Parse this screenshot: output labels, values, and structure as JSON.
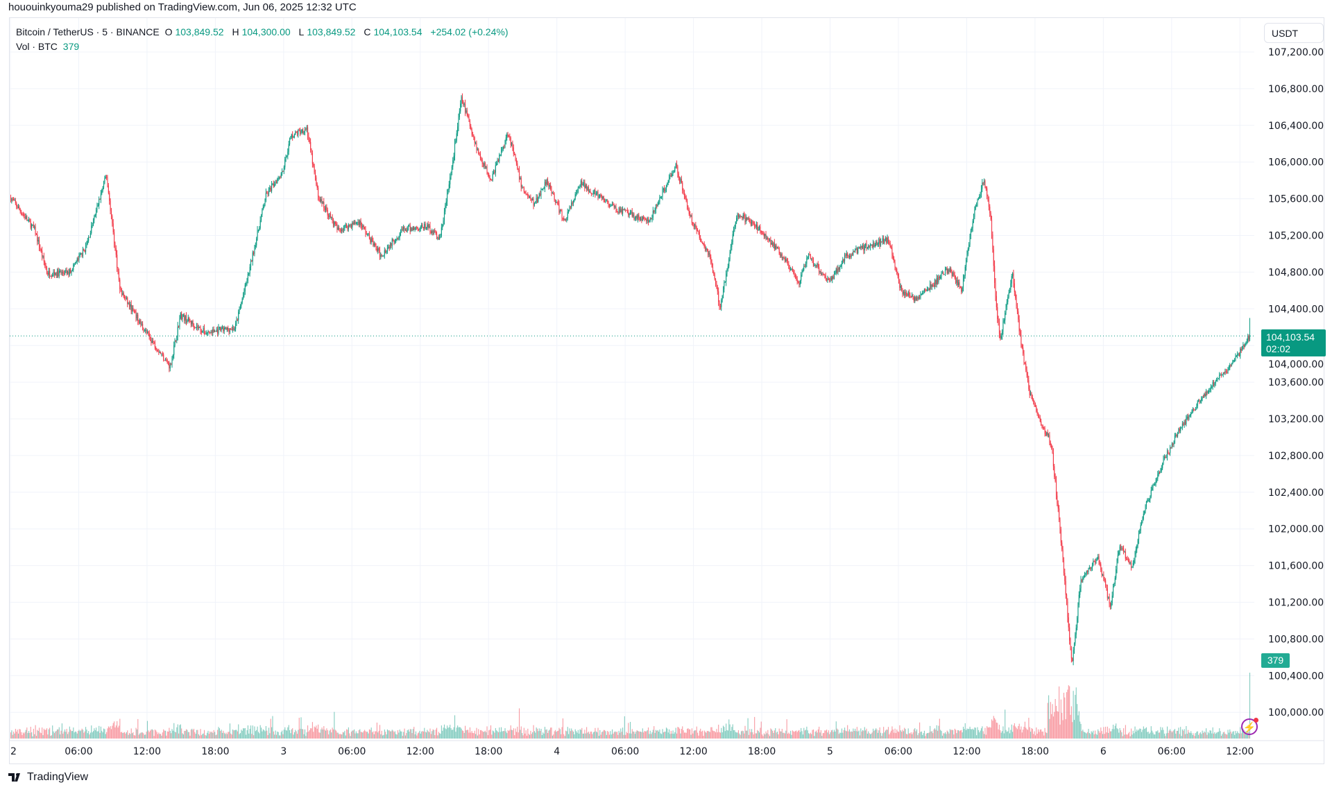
{
  "caption": "hououinkyouma29 published on TradingView.com, Jun 06, 2025 12:32 UTC",
  "legend": {
    "symbol": "Bitcoin / TetherUS · 5 · BINANCE",
    "o_label": "O",
    "o": "103,849.52",
    "h_label": "H",
    "h": "104,300.00",
    "l_label": "L",
    "l": "103,849.52",
    "c_label": "C",
    "c": "104,103.54",
    "change": "+254.02 (+0.24%)",
    "vol_label": "Vol · BTC",
    "vol": "379"
  },
  "currency_button": "USDT",
  "last_price_label": "104,103.54",
  "countdown": "02:02",
  "volume_label": "379",
  "brand": "TradingView",
  "colors": {
    "up": "#089981",
    "down": "#f23645",
    "grid": "#f0f3fa"
  },
  "chart_data": {
    "type": "candlestick",
    "title": "Bitcoin / TetherUS · 5 · BINANCE",
    "interval_minutes": 5,
    "ylim": [
      99700,
      107400
    ],
    "y_ticks": [
      "107,200.00",
      "106,800.00",
      "106,400.00",
      "106,000.00",
      "105,600.00",
      "105,200.00",
      "104,800.00",
      "104,400.00",
      "104,000.00",
      "103,600.00",
      "103,200.00",
      "102,800.00",
      "102,400.00",
      "102,000.00",
      "101,600.00",
      "101,200.00",
      "100,800.00",
      "100,400.00",
      "100,000.00"
    ],
    "y_tick_values": [
      107200,
      106800,
      106400,
      106000,
      105600,
      105200,
      104800,
      104400,
      104000,
      103600,
      103200,
      102800,
      102400,
      102000,
      101600,
      101200,
      100800,
      100400,
      100000
    ],
    "x_ticks": [
      {
        "h": 0,
        "label": "2"
      },
      {
        "h": 6,
        "label": "06:00"
      },
      {
        "h": 12,
        "label": "12:00"
      },
      {
        "h": 18,
        "label": "18:00"
      },
      {
        "h": 24,
        "label": "3"
      },
      {
        "h": 30,
        "label": "06:00"
      },
      {
        "h": 36,
        "label": "12:00"
      },
      {
        "h": 42,
        "label": "18:00"
      },
      {
        "h": 48,
        "label": "4"
      },
      {
        "h": 54,
        "label": "06:00"
      },
      {
        "h": 60,
        "label": "12:00"
      },
      {
        "h": 66,
        "label": "18:00"
      },
      {
        "h": 72,
        "label": "5"
      },
      {
        "h": 78,
        "label": "06:00"
      },
      {
        "h": 84,
        "label": "12:00"
      },
      {
        "h": 90,
        "label": "18:00"
      },
      {
        "h": 96,
        "label": "6"
      },
      {
        "h": 102,
        "label": "06:00"
      },
      {
        "h": 108,
        "label": "12:00"
      }
    ],
    "last_price": 104103.54,
    "price_path_hours_since_jun2": [
      [
        0,
        105610
      ],
      [
        2.1,
        105260
      ],
      [
        3.2,
        104790
      ],
      [
        5.1,
        104790
      ],
      [
        6.6,
        105070
      ],
      [
        8.4,
        105860
      ],
      [
        9.6,
        104600
      ],
      [
        11.9,
        104140
      ],
      [
        14.0,
        103770
      ],
      [
        14.9,
        104330
      ],
      [
        17.1,
        104140
      ],
      [
        19.7,
        104190
      ],
      [
        20.9,
        104790
      ],
      [
        22.4,
        105630
      ],
      [
        23.9,
        105910
      ],
      [
        24.6,
        106280
      ],
      [
        26.0,
        106370
      ],
      [
        27.0,
        105630
      ],
      [
        28.7,
        105260
      ],
      [
        30.6,
        105350
      ],
      [
        32.5,
        104980
      ],
      [
        34.4,
        105260
      ],
      [
        36.6,
        105300
      ],
      [
        37.7,
        105160
      ],
      [
        38.7,
        105910
      ],
      [
        39.6,
        106700
      ],
      [
        41.1,
        106090
      ],
      [
        42.2,
        105810
      ],
      [
        43.7,
        106330
      ],
      [
        44.9,
        105720
      ],
      [
        46.0,
        105540
      ],
      [
        47.1,
        105810
      ],
      [
        48.6,
        105350
      ],
      [
        50.1,
        105770
      ],
      [
        53.1,
        105490
      ],
      [
        56.1,
        105350
      ],
      [
        58.4,
        105970
      ],
      [
        59.9,
        105330
      ],
      [
        61.4,
        104980
      ],
      [
        62.3,
        104420
      ],
      [
        63.8,
        105440
      ],
      [
        65.9,
        105260
      ],
      [
        68.1,
        104930
      ],
      [
        69.2,
        104650
      ],
      [
        70.0,
        104980
      ],
      [
        71.9,
        104700
      ],
      [
        73.4,
        104980
      ],
      [
        74.9,
        105070
      ],
      [
        77.1,
        105160
      ],
      [
        78.2,
        104600
      ],
      [
        79.4,
        104510
      ],
      [
        80.9,
        104650
      ],
      [
        82.4,
        104840
      ],
      [
        83.5,
        104600
      ],
      [
        84.6,
        105440
      ],
      [
        85.5,
        105810
      ],
      [
        86.1,
        105350
      ],
      [
        86.5,
        104510
      ],
      [
        86.9,
        104050
      ],
      [
        88.0,
        104790
      ],
      [
        88.7,
        104050
      ],
      [
        89.5,
        103490
      ],
      [
        90.6,
        103120
      ],
      [
        91.4,
        102930
      ],
      [
        92.0,
        102190
      ],
      [
        92.7,
        101260
      ],
      [
        93.2,
        100510
      ],
      [
        94.0,
        101440
      ],
      [
        95.5,
        101680
      ],
      [
        96.6,
        101160
      ],
      [
        97.4,
        101810
      ],
      [
        98.5,
        101580
      ],
      [
        99.6,
        102230
      ],
      [
        101.1,
        102700
      ],
      [
        102.6,
        103070
      ],
      [
        104.1,
        103350
      ],
      [
        105.6,
        103580
      ],
      [
        107.1,
        103770
      ],
      [
        108.2,
        103970
      ],
      [
        108.8,
        104100
      ]
    ]
  }
}
